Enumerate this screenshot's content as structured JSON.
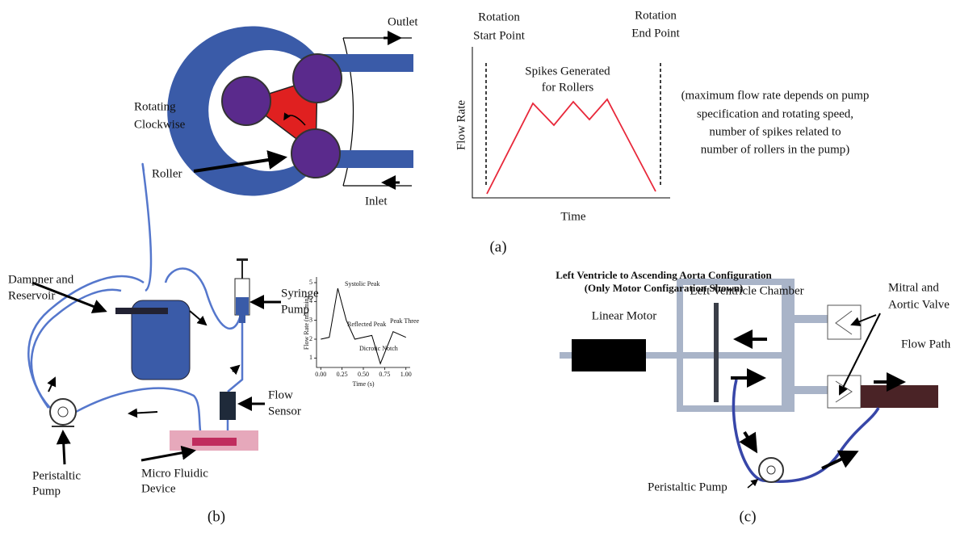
{
  "panel_a": {
    "outlet": "Outlet",
    "inlet": "Inlet",
    "rotating": [
      "Rotating",
      "Clockwise"
    ],
    "roller": "Roller",
    "start": [
      "Rotation",
      "Start Point"
    ],
    "end": [
      "Rotation",
      "End Point"
    ],
    "spikes": [
      "Spikes Generated",
      "for Rollers"
    ],
    "y_label": "Flow Rate",
    "x_label": "Time",
    "note": [
      "(maximum flow rate depends on pump",
      "specification and rotating speed,",
      "number of spikes related to",
      "number of rollers in the pump)"
    ],
    "caption": "(a)"
  },
  "panel_b": {
    "reservoir": [
      "Dampner and",
      "Reservoir"
    ],
    "syringe": [
      "Syringe",
      "Pump"
    ],
    "sensor": [
      "Flow",
      "Sensor"
    ],
    "pump": [
      "Peristaltic",
      "Pump"
    ],
    "device": [
      "Micro Fluidic",
      "Device"
    ],
    "caption": "(b)",
    "chart": {
      "type": "line",
      "y_label": "Flow Rate (mL/min)",
      "x_label": "Time (s)",
      "annotations": [
        "Systolic Peak",
        "Reflected Peak",
        "Dicrotic Notch",
        "Peak Three"
      ],
      "x": [
        0,
        0.1,
        0.2,
        0.3,
        0.4,
        0.6,
        0.7,
        0.85,
        1.0
      ],
      "values": [
        2,
        2.1,
        4.7,
        3,
        2,
        2.2,
        0.7,
        2.4,
        2.1
      ],
      "xlim": [
        -0.05,
        1.05
      ],
      "ylim": [
        0.5,
        5.3
      ],
      "xticks": [
        {
          "value": 0,
          "label": "0.00"
        },
        {
          "value": 0.25,
          "label": "0.25"
        },
        {
          "value": 0.5,
          "label": "0.50"
        },
        {
          "value": 0.75,
          "label": "0.75"
        },
        {
          "value": 1,
          "label": "1.00"
        }
      ],
      "yticks": [
        1,
        2,
        3,
        4,
        5
      ]
    }
  },
  "panel_c": {
    "title": [
      "Left Ventricle to Ascending Aorta Configuration",
      "(Only Motor Configaration Shown)"
    ],
    "motor": "Linear Motor",
    "chamber": "Left Ventricle Chamber",
    "valve": [
      "Mitral and",
      "Aortic Valve"
    ],
    "flow_path": "Flow Path",
    "pump": "Peristaltic Pump",
    "caption": "(c)"
  }
}
